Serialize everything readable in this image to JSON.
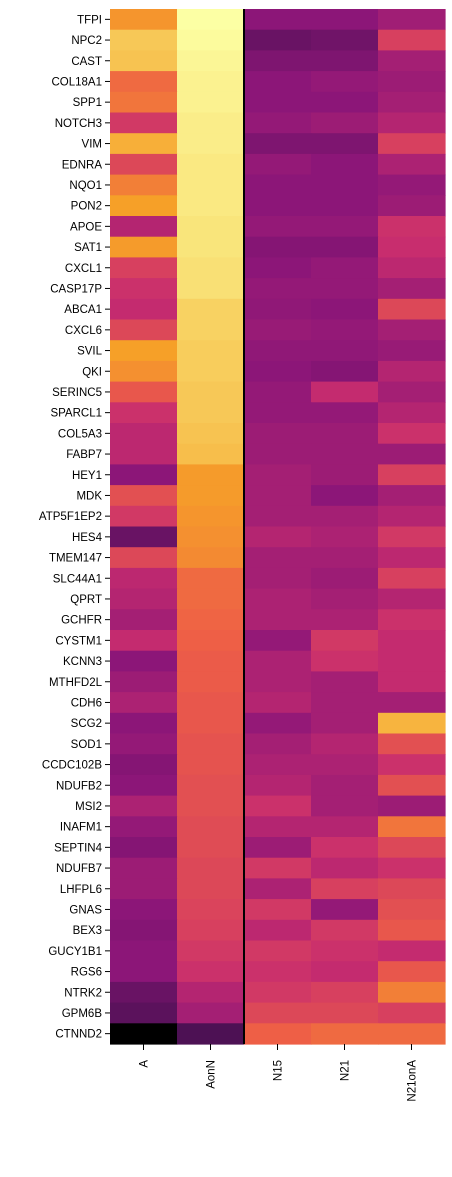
{
  "chart_data": {
    "type": "heatmap",
    "rows": [
      "TFPI",
      "NPC2",
      "CAST",
      "COL18A1",
      "SPP1",
      "NOTCH3",
      "VIM",
      "EDNRA",
      "NQO1",
      "PON2",
      "APOE",
      "SAT1",
      "CXCL1",
      "CASP17P",
      "ABCA1",
      "CXCL6",
      "SVIL",
      "QKI",
      "SERINC5",
      "SPARCL1",
      "COL5A3",
      "FABP7",
      "HEY1",
      "MDK",
      "ATP5F1EP2",
      "HES4",
      "TMEM147",
      "SLC44A1",
      "QPRT",
      "GCHFR",
      "CYSTM1",
      "KCNN3",
      "MTHFD2L",
      "CDH6",
      "SCG2",
      "SOD1",
      "CCDC102B",
      "NDUFB2",
      "MSI2",
      "INAFM1",
      "SEPTIN4",
      "NDUFB7",
      "LHFPL6",
      "GNAS",
      "BEX3",
      "GUCY1B1",
      "RGS6",
      "NTRK2",
      "GPM6B",
      "CTNND2"
    ],
    "columns": [
      "A",
      "AonN",
      "N15",
      "N21",
      "N21onA"
    ],
    "colormap": "inferno-like (black → purple → magenta → orange → pale yellow)",
    "values": [
      [
        0.78,
        1.0,
        0.4,
        0.4,
        0.45
      ],
      [
        0.88,
        0.99,
        0.3,
        0.32,
        0.6
      ],
      [
        0.87,
        0.98,
        0.36,
        0.36,
        0.46
      ],
      [
        0.7,
        0.97,
        0.4,
        0.42,
        0.44
      ],
      [
        0.72,
        0.97,
        0.4,
        0.4,
        0.46
      ],
      [
        0.58,
        0.96,
        0.42,
        0.44,
        0.5
      ],
      [
        0.83,
        0.96,
        0.36,
        0.36,
        0.6
      ],
      [
        0.62,
        0.95,
        0.42,
        0.4,
        0.48
      ],
      [
        0.74,
        0.95,
        0.4,
        0.4,
        0.42
      ],
      [
        0.8,
        0.95,
        0.4,
        0.4,
        0.44
      ],
      [
        0.5,
        0.94,
        0.42,
        0.42,
        0.56
      ],
      [
        0.79,
        0.94,
        0.38,
        0.38,
        0.55
      ],
      [
        0.6,
        0.93,
        0.4,
        0.42,
        0.52
      ],
      [
        0.56,
        0.93,
        0.42,
        0.42,
        0.46
      ],
      [
        0.54,
        0.9,
        0.41,
        0.4,
        0.62
      ],
      [
        0.62,
        0.9,
        0.43,
        0.42,
        0.46
      ],
      [
        0.8,
        0.89,
        0.41,
        0.41,
        0.43
      ],
      [
        0.77,
        0.89,
        0.4,
        0.38,
        0.5
      ],
      [
        0.66,
        0.88,
        0.42,
        0.54,
        0.46
      ],
      [
        0.56,
        0.88,
        0.42,
        0.42,
        0.5
      ],
      [
        0.52,
        0.87,
        0.44,
        0.44,
        0.56
      ],
      [
        0.52,
        0.86,
        0.44,
        0.44,
        0.44
      ],
      [
        0.4,
        0.79,
        0.46,
        0.44,
        0.6
      ],
      [
        0.64,
        0.79,
        0.46,
        0.4,
        0.46
      ],
      [
        0.58,
        0.78,
        0.46,
        0.46,
        0.5
      ],
      [
        0.3,
        0.77,
        0.5,
        0.48,
        0.58
      ],
      [
        0.62,
        0.76,
        0.46,
        0.46,
        0.52
      ],
      [
        0.52,
        0.7,
        0.46,
        0.44,
        0.6
      ],
      [
        0.5,
        0.7,
        0.48,
        0.46,
        0.5
      ],
      [
        0.46,
        0.69,
        0.48,
        0.48,
        0.56
      ],
      [
        0.54,
        0.68,
        0.42,
        0.58,
        0.54
      ],
      [
        0.4,
        0.67,
        0.48,
        0.56,
        0.54
      ],
      [
        0.44,
        0.67,
        0.48,
        0.46,
        0.54
      ],
      [
        0.48,
        0.66,
        0.5,
        0.46,
        0.46
      ],
      [
        0.4,
        0.66,
        0.42,
        0.46,
        0.84
      ],
      [
        0.42,
        0.65,
        0.46,
        0.5,
        0.64
      ],
      [
        0.38,
        0.65,
        0.48,
        0.48,
        0.56
      ],
      [
        0.4,
        0.64,
        0.5,
        0.46,
        0.64
      ],
      [
        0.48,
        0.64,
        0.56,
        0.46,
        0.44
      ],
      [
        0.42,
        0.63,
        0.5,
        0.5,
        0.72
      ],
      [
        0.38,
        0.63,
        0.44,
        0.56,
        0.62
      ],
      [
        0.44,
        0.62,
        0.58,
        0.52,
        0.56
      ],
      [
        0.44,
        0.62,
        0.48,
        0.6,
        0.62
      ],
      [
        0.4,
        0.61,
        0.58,
        0.42,
        0.64
      ],
      [
        0.38,
        0.6,
        0.52,
        0.58,
        0.66
      ],
      [
        0.4,
        0.58,
        0.58,
        0.56,
        0.54
      ],
      [
        0.4,
        0.56,
        0.56,
        0.54,
        0.66
      ],
      [
        0.3,
        0.5,
        0.58,
        0.6,
        0.74
      ],
      [
        0.26,
        0.46,
        0.62,
        0.62,
        0.6
      ],
      [
        0.0,
        0.22,
        0.68,
        0.7,
        0.7
      ]
    ],
    "xlabel": "",
    "ylabel": "",
    "title": "",
    "separator_after_column": "AonN",
    "grid": false,
    "legend": "none"
  }
}
